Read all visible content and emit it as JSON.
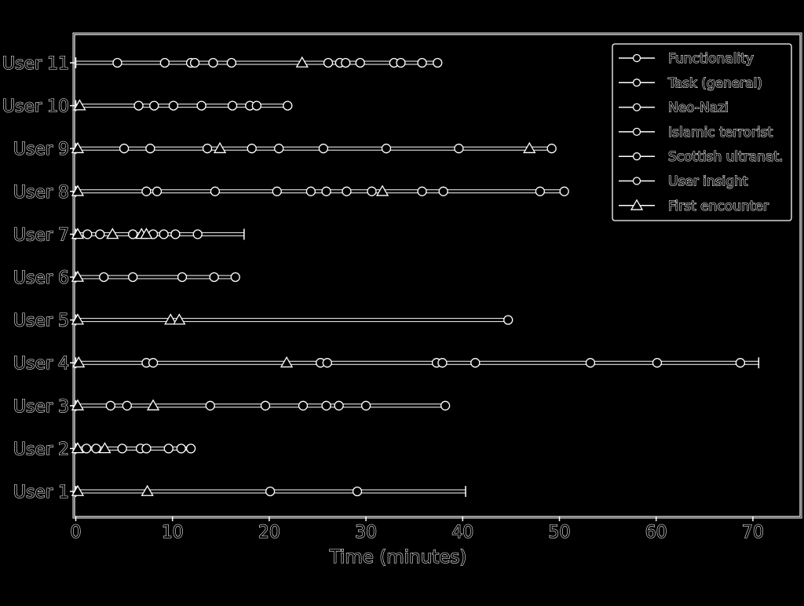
{
  "chart_data": {
    "type": "scatter",
    "title": "",
    "xlabel": "Time (minutes)",
    "ylabel": "",
    "xlim": [
      0,
      75
    ],
    "xticks": [
      "0",
      "10",
      "20",
      "30",
      "40",
      "50",
      "60",
      "70"
    ],
    "grid": false,
    "legend_position": "top-right",
    "legend": [
      {
        "label": "Functionality",
        "marker": "circle"
      },
      {
        "label": "Task (general)",
        "marker": "circle"
      },
      {
        "label": "Neo-Nazi",
        "marker": "circle"
      },
      {
        "label": "Islamic terrorist",
        "marker": "circle"
      },
      {
        "label": "Scottish ultranat.",
        "marker": "circle"
      },
      {
        "label": "User insight",
        "marker": "circle"
      },
      {
        "label": "First encounter",
        "marker": "triangle"
      }
    ],
    "users": [
      {
        "label": "User 1",
        "end": 40.3,
        "end_marker": "cap",
        "triangles": [
          0.2,
          7.4
        ],
        "circles": [
          20.1,
          29.1
        ]
      },
      {
        "label": "User 2",
        "end": 11.9,
        "end_marker": "circle",
        "triangles": [
          0.2,
          3.0
        ],
        "circles": [
          1.1,
          2.1,
          4.8,
          6.7,
          7.3,
          9.6,
          10.9
        ]
      },
      {
        "label": "User 3",
        "end": 38.2,
        "end_marker": "circle",
        "triangles": [
          0.2,
          8.0
        ],
        "circles": [
          3.6,
          5.3,
          13.9,
          19.6,
          23.5,
          25.9,
          27.2,
          30.0
        ]
      },
      {
        "label": "User 4",
        "end": 70.6,
        "end_marker": "cap",
        "triangles": [
          0.3,
          21.8
        ],
        "circles": [
          7.3,
          8.0,
          25.3,
          26.0,
          37.3,
          37.9,
          41.3,
          53.2,
          60.1,
          68.7
        ]
      },
      {
        "label": "User 5",
        "end": 44.7,
        "end_marker": "circle",
        "triangles": [
          0.2,
          9.8,
          10.7
        ],
        "circles": []
      },
      {
        "label": "User 6",
        "end": 16.5,
        "end_marker": "circle",
        "triangles": [
          0.2
        ],
        "circles": [
          2.9,
          5.9,
          11.0,
          14.3
        ]
      },
      {
        "label": "User 7",
        "end": 17.4,
        "end_marker": "cap",
        "triangles": [
          0.2,
          3.8,
          6.8,
          7.3
        ],
        "circles": [
          1.2,
          2.5,
          5.9,
          8.0,
          9.1,
          10.3,
          12.6
        ]
      },
      {
        "label": "User 8",
        "end": 50.5,
        "end_marker": "circle",
        "triangles": [
          0.2,
          31.7
        ],
        "circles": [
          7.3,
          8.4,
          14.4,
          20.8,
          24.3,
          25.9,
          28.0,
          30.6,
          35.8,
          38.0,
          48.0
        ]
      },
      {
        "label": "User 9",
        "end": 49.2,
        "end_marker": "circle",
        "triangles": [
          0.2,
          14.9,
          46.9
        ],
        "circles": [
          5.0,
          7.7,
          13.6,
          18.2,
          21.0,
          25.6,
          32.1,
          39.6
        ]
      },
      {
        "label": "User 10",
        "end": 21.9,
        "end_marker": "circle",
        "triangles": [
          0.4
        ],
        "circles": [
          6.5,
          8.1,
          10.1,
          13.0,
          16.2,
          18.0,
          18.7
        ]
      },
      {
        "label": "User 11",
        "end": 37.4,
        "end_marker": "circle",
        "triangles": [
          23.4
        ],
        "circles": [
          4.3,
          9.2,
          11.9,
          12.3,
          14.2,
          16.1,
          26.1,
          27.3,
          27.9,
          29.4,
          32.9,
          33.6,
          35.8
        ]
      }
    ]
  }
}
